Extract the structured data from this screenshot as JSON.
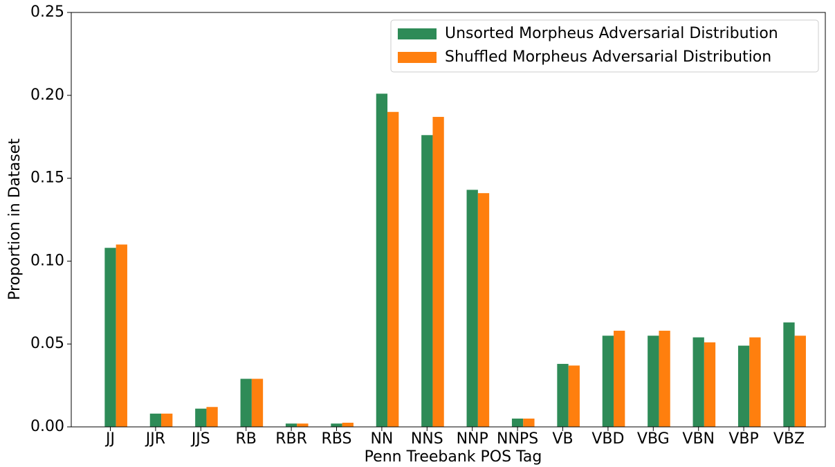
{
  "chart_data": {
    "type": "bar",
    "xlabel": "Penn Treebank POS Tag",
    "ylabel": "Proportion in Dataset",
    "categories": [
      "JJ",
      "JJR",
      "JJS",
      "RB",
      "RBR",
      "RBS",
      "NN",
      "NNS",
      "NNP",
      "NNPS",
      "VB",
      "VBD",
      "VBG",
      "VBN",
      "VBP",
      "VBZ"
    ],
    "series": [
      {
        "name": "Unsorted Morpheus Adversarial Distribution",
        "color": "#2e8b57",
        "values": [
          0.108,
          0.008,
          0.011,
          0.029,
          0.002,
          0.002,
          0.201,
          0.176,
          0.143,
          0.005,
          0.038,
          0.055,
          0.055,
          0.054,
          0.049,
          0.063
        ]
      },
      {
        "name": "Shuffled Morpheus Adversarial Distribution",
        "color": "#ff7f0e",
        "values": [
          0.11,
          0.008,
          0.012,
          0.029,
          0.002,
          0.0025,
          0.19,
          0.187,
          0.141,
          0.005,
          0.037,
          0.058,
          0.058,
          0.051,
          0.054,
          0.055
        ]
      }
    ],
    "ylim": [
      0,
      0.25
    ],
    "yticks": [
      {
        "value": 0,
        "label": "0.00"
      },
      {
        "value": 0.05,
        "label": "0.05"
      },
      {
        "value": 0.1,
        "label": "0.10"
      },
      {
        "value": 0.15,
        "label": "0.15"
      },
      {
        "value": 0.2,
        "label": "0.20"
      },
      {
        "value": 0.25,
        "label": "0.25"
      }
    ],
    "legend": "upper right"
  }
}
